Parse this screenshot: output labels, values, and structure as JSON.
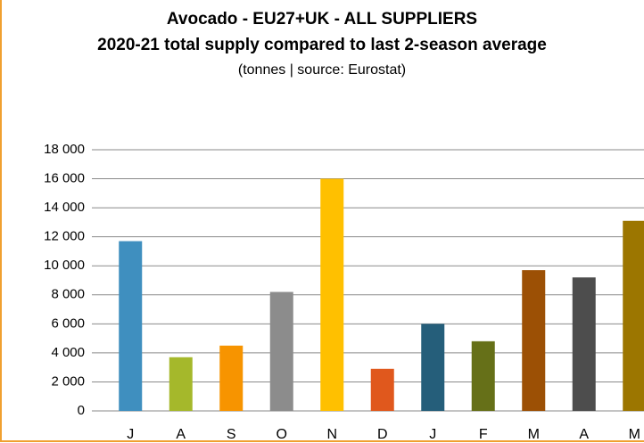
{
  "chart_data": {
    "type": "bar",
    "title": "Avocado  - EU27+UK  - ALL SUPPLIERS",
    "subtitle": "2020-21 total supply compared to last 2-season average",
    "caption": "(tonnes | source: Eurostat)",
    "categories": [
      "J",
      "A",
      "S",
      "O",
      "N",
      "D",
      "J",
      "F",
      "M",
      "A",
      "M"
    ],
    "values": [
      11700,
      3700,
      4500,
      8200,
      16000,
      2900,
      6000,
      4800,
      9700,
      9200,
      13100
    ],
    "colors": [
      "#3f8fbf",
      "#a5b82b",
      "#f79400",
      "#8c8c8c",
      "#ffc000",
      "#e0581d",
      "#255e7a",
      "#667018",
      "#9c5005",
      "#4d4d4d",
      "#9c7600"
    ],
    "ylim": [
      0,
      18000
    ],
    "yticks": [
      0,
      {
        "value": 2000,
        "label": "2 000"
      },
      {
        "value": 4000,
        "label": "4 000"
      },
      {
        "value": 6000,
        "label": "6 000"
      },
      {
        "value": 8000,
        "label": "8 000"
      },
      {
        "value": 10000,
        "label": "10 000"
      },
      {
        "value": 12000,
        "label": "12 000"
      },
      {
        "value": 14000,
        "label": "14 000"
      },
      {
        "value": 16000,
        "label": "16 000"
      },
      {
        "value": 18000,
        "label": "18 000"
      }
    ],
    "grid": true
  }
}
